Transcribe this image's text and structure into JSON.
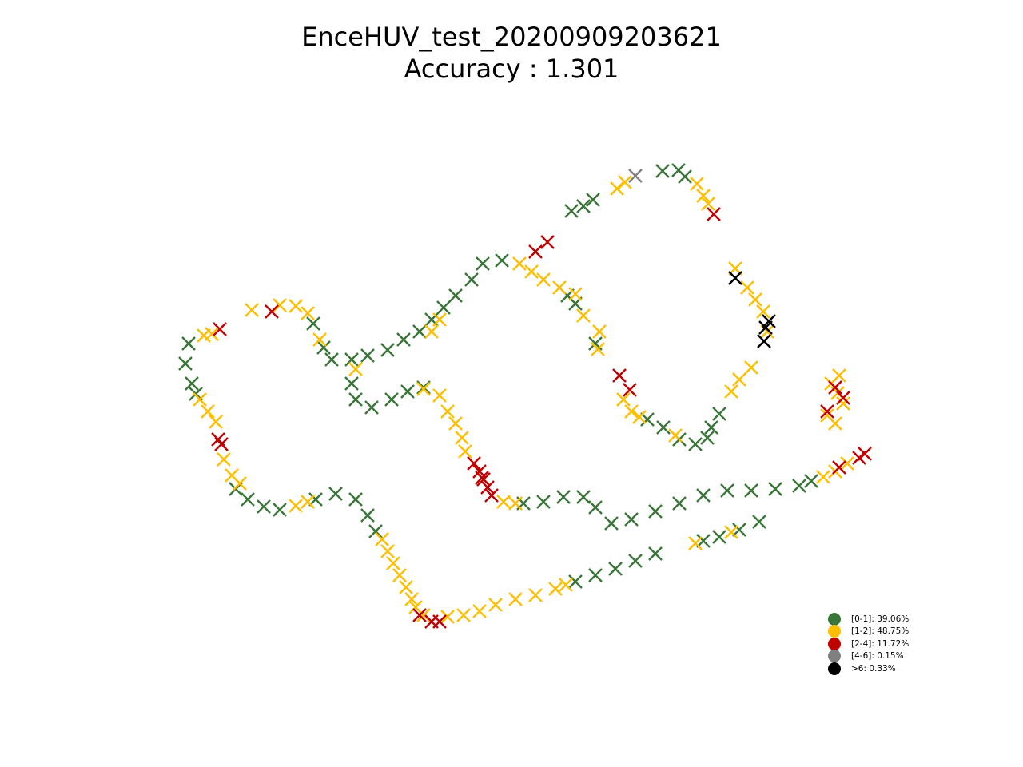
{
  "chart_data": {
    "type": "scatter",
    "title": "EnceHUV_test_20200909203621",
    "subtitle": "Accuracy : 1.301",
    "marker": "x",
    "axes_visible": false,
    "legend_position": "bottom-right",
    "colors": {
      "0-1": "#3b7639",
      "1-2": "#ffbf00",
      "2-4": "#c00000",
      "4-6": "#808080",
      "gt6": "#000000"
    },
    "legend": [
      {
        "key": "0-1",
        "label": "[0-1]: 39.06%"
      },
      {
        "key": "1-2",
        "label": "[1-2]: 48.75%"
      },
      {
        "key": "2-4",
        "label": "[2-4]: 11.72%"
      },
      {
        "key": "4-6",
        "label": "[4-6]: 0.15%"
      },
      {
        "key": "gt6",
        "label": ">6: 0.33%"
      }
    ],
    "series": [
      {
        "key": "0-1",
        "points": [
          [
            829,
            214
          ],
          [
            849,
            213
          ],
          [
            857,
            221
          ],
          [
            742,
            250
          ],
          [
            715,
            264
          ],
          [
            730,
            258
          ],
          [
            604,
            330
          ],
          [
            628,
            326
          ],
          [
            590,
            350
          ],
          [
            570,
            370
          ],
          [
            555,
            385
          ],
          [
            540,
            400
          ],
          [
            525,
            415
          ],
          [
            505,
            425
          ],
          [
            485,
            438
          ],
          [
            460,
            445
          ],
          [
            440,
            450
          ],
          [
            415,
            450
          ],
          [
            392,
            405
          ],
          [
            405,
            435
          ],
          [
            440,
            480
          ],
          [
            445,
            500
          ],
          [
            465,
            510
          ],
          [
            490,
            500
          ],
          [
            510,
            490
          ],
          [
            530,
            485
          ],
          [
            236,
            430
          ],
          [
            232,
            455
          ],
          [
            240,
            480
          ],
          [
            245,
            493
          ],
          [
            295,
            612
          ],
          [
            310,
            625
          ],
          [
            330,
            634
          ],
          [
            350,
            638
          ],
          [
            395,
            625
          ],
          [
            420,
            618
          ],
          [
            445,
            625
          ],
          [
            460,
            645
          ],
          [
            470,
            665
          ],
          [
            655,
            630
          ],
          [
            680,
            628
          ],
          [
            705,
            622
          ],
          [
            730,
            622
          ],
          [
            745,
            635
          ],
          [
            765,
            655
          ],
          [
            790,
            650
          ],
          [
            820,
            640
          ],
          [
            850,
            630
          ],
          [
            880,
            620
          ],
          [
            910,
            614
          ],
          [
            940,
            614
          ],
          [
            970,
            612
          ],
          [
            1000,
            608
          ],
          [
            1015,
            602
          ],
          [
            880,
            677
          ],
          [
            900,
            672
          ],
          [
            925,
            663
          ],
          [
            950,
            653
          ],
          [
            720,
            728
          ],
          [
            745,
            720
          ],
          [
            770,
            712
          ],
          [
            795,
            702
          ],
          [
            820,
            693
          ],
          [
            710,
            370
          ],
          [
            720,
            380
          ],
          [
            745,
            430
          ],
          [
            810,
            525
          ],
          [
            830,
            535
          ],
          [
            850,
            550
          ],
          [
            870,
            556
          ],
          [
            885,
            548
          ],
          [
            890,
            535
          ],
          [
            900,
            518
          ]
        ]
      },
      {
        "key": "1-2",
        "points": [
          [
            772,
            236
          ],
          [
            782,
            228
          ],
          [
            872,
            230
          ],
          [
            880,
            245
          ],
          [
            886,
            255
          ],
          [
            920,
            336
          ],
          [
            935,
            360
          ],
          [
            945,
            375
          ],
          [
            955,
            390
          ],
          [
            960,
            415
          ],
          [
            915,
            490
          ],
          [
            925,
            475
          ],
          [
            940,
            460
          ],
          [
            650,
            330
          ],
          [
            665,
            340
          ],
          [
            680,
            350
          ],
          [
            700,
            360
          ],
          [
            720,
            368
          ],
          [
            730,
            395
          ],
          [
            750,
            415
          ],
          [
            748,
            437
          ],
          [
            780,
            500
          ],
          [
            790,
            515
          ],
          [
            800,
            522
          ],
          [
            845,
            545
          ],
          [
            1040,
            480
          ],
          [
            1048,
            492
          ],
          [
            1055,
            505
          ],
          [
            1035,
            520
          ],
          [
            1045,
            530
          ],
          [
            1050,
            470
          ],
          [
            1030,
            597
          ],
          [
            1045,
            590
          ],
          [
            1060,
            580
          ],
          [
            530,
            487
          ],
          [
            550,
            495
          ],
          [
            560,
            515
          ],
          [
            570,
            530
          ],
          [
            578,
            548
          ],
          [
            582,
            565
          ],
          [
            630,
            628
          ],
          [
            645,
            630
          ],
          [
            315,
            388
          ],
          [
            350,
            382
          ],
          [
            370,
            383
          ],
          [
            385,
            392
          ],
          [
            400,
            425
          ],
          [
            255,
            420
          ],
          [
            265,
            418
          ],
          [
            250,
            500
          ],
          [
            260,
            515
          ],
          [
            270,
            528
          ],
          [
            280,
            575
          ],
          [
            290,
            595
          ],
          [
            300,
            605
          ],
          [
            370,
            633
          ],
          [
            385,
            628
          ],
          [
            478,
            675
          ],
          [
            485,
            690
          ],
          [
            492,
            705
          ],
          [
            500,
            720
          ],
          [
            508,
            735
          ],
          [
            515,
            750
          ],
          [
            520,
            760
          ],
          [
            530,
            770
          ],
          [
            560,
            772
          ],
          [
            580,
            770
          ],
          [
            600,
            765
          ],
          [
            620,
            757
          ],
          [
            645,
            750
          ],
          [
            670,
            745
          ],
          [
            695,
            737
          ],
          [
            708,
            732
          ],
          [
            870,
            680
          ],
          [
            915,
            666
          ],
          [
            540,
            415
          ],
          [
            550,
            400
          ],
          [
            445,
            462
          ]
        ]
      },
      {
        "key": "2-4",
        "points": [
          [
            893,
            268
          ],
          [
            685,
            303
          ],
          [
            670,
            315
          ],
          [
            275,
            412
          ],
          [
            340,
            390
          ],
          [
            273,
            550
          ],
          [
            277,
            556
          ],
          [
            775,
            470
          ],
          [
            788,
            488
          ],
          [
            593,
            580
          ],
          [
            600,
            590
          ],
          [
            605,
            600
          ],
          [
            610,
            610
          ],
          [
            615,
            620
          ],
          [
            603,
            598
          ],
          [
            1045,
            485
          ],
          [
            1055,
            498
          ],
          [
            1035,
            515
          ],
          [
            1050,
            585
          ],
          [
            1075,
            573
          ],
          [
            1082,
            568
          ],
          [
            525,
            770
          ],
          [
            540,
            778
          ],
          [
            550,
            778
          ]
        ]
      },
      {
        "key": "4-6",
        "points": [
          [
            795,
            220
          ]
        ]
      },
      {
        "key": "gt6",
        "points": [
          [
            920,
            348
          ],
          [
            962,
            402
          ],
          [
            958,
            410
          ],
          [
            956,
            427
          ]
        ]
      }
    ]
  }
}
